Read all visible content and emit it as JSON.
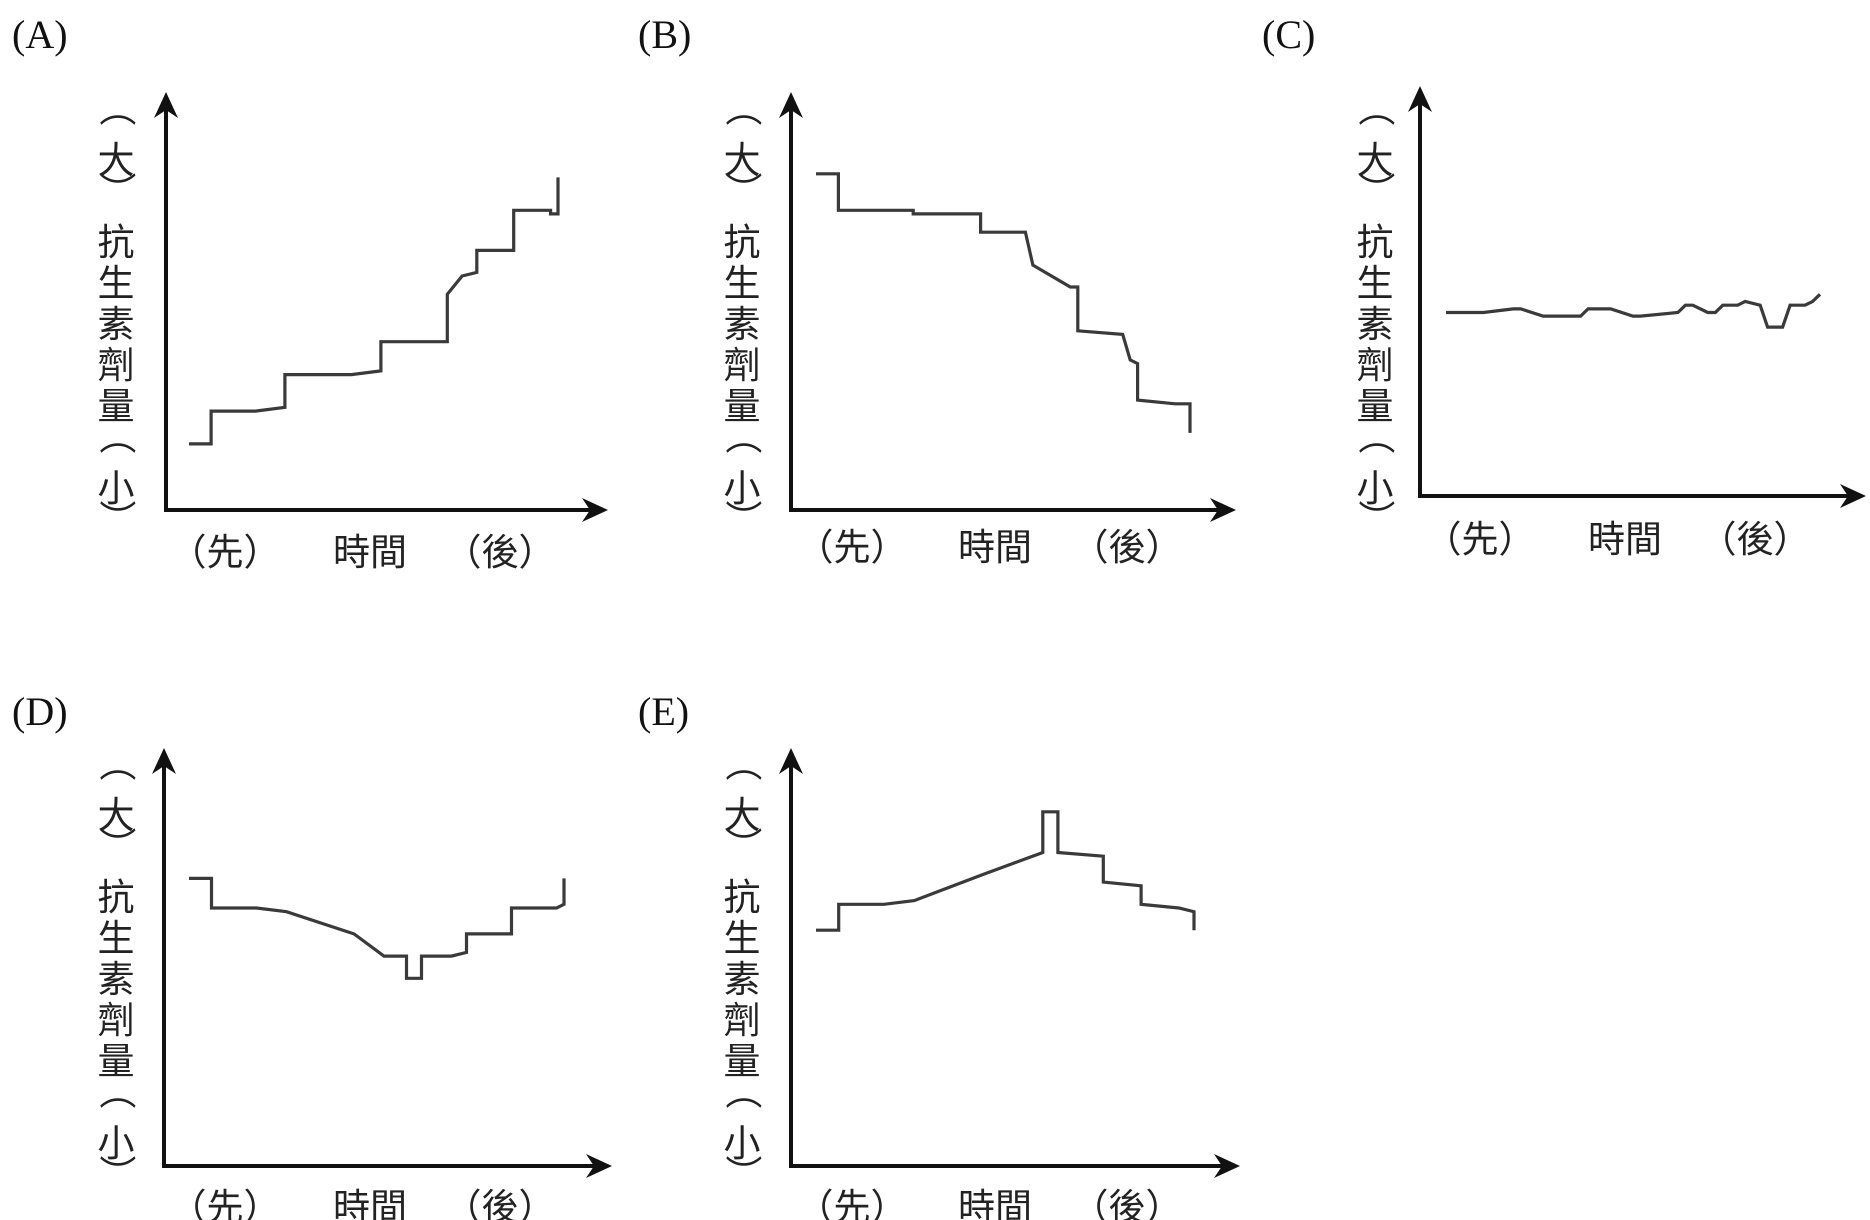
{
  "chart_data": [
    {
      "type": "line",
      "panel": "(A)",
      "ylabel": [
        "（",
        "大",
        "）",
        "抗",
        "生",
        "素",
        "劑",
        "量",
        "（",
        "小",
        "）"
      ],
      "xlabel": [
        "（先）",
        "時間",
        "（後）"
      ],
      "ylim": [
        0,
        100
      ],
      "series": [
        {
          "step_x": [
            0,
            6,
            6,
            18,
            26,
            26,
            44,
            52,
            52,
            62,
            70,
            70,
            74,
            78,
            78,
            88,
            88,
            98,
            98,
            100,
            100
          ],
          "values": [
            14,
            14,
            23,
            23,
            24,
            33,
            33,
            34,
            42,
            42,
            42,
            55,
            60,
            61,
            67,
            67,
            78,
            78,
            77,
            77,
            87
          ]
        }
      ]
    },
    {
      "type": "line",
      "panel": "(B)",
      "ylabel": [
        "（",
        "大",
        "）",
        "抗",
        "生",
        "素",
        "劑",
        "量",
        "（",
        "小",
        "）"
      ],
      "xlabel": [
        "（先）",
        "時間",
        "（後）"
      ],
      "ylim": [
        0,
        100
      ],
      "series": [
        {
          "step_x": [
            0,
            6,
            6,
            26,
            26,
            44,
            44,
            52,
            56,
            58,
            58,
            68,
            70,
            70,
            82,
            84,
            84,
            86,
            86,
            96,
            100,
            100
          ],
          "values": [
            88,
            88,
            78,
            78,
            77,
            77,
            72,
            72,
            72,
            63,
            63,
            57,
            57,
            45,
            44,
            37,
            37,
            36,
            26,
            25,
            25,
            17
          ]
        }
      ]
    },
    {
      "type": "line",
      "panel": "(C)",
      "ylabel": [
        "（",
        "大",
        "）",
        "抗",
        "生",
        "素",
        "劑",
        "量",
        "（",
        "小",
        "）"
      ],
      "xlabel": [
        "（先）",
        "時間",
        "（後）"
      ],
      "ylim": [
        0,
        100
      ],
      "series": [
        {
          "step_x": [
            0,
            6,
            10,
            18,
            20,
            26,
            36,
            38,
            44,
            50,
            52,
            62,
            64,
            66,
            70,
            72,
            74,
            78,
            80,
            84,
            86,
            90,
            92,
            96,
            98,
            100
          ],
          "values": [
            50,
            50,
            50,
            51,
            51,
            49,
            49,
            51,
            51,
            49,
            49,
            50,
            52,
            52,
            50,
            50,
            52,
            52,
            53,
            52,
            46,
            46,
            52,
            52,
            53,
            55
          ]
        }
      ]
    },
    {
      "type": "line",
      "panel": "(D)",
      "ylabel": [
        "（",
        "大",
        "）",
        "抗",
        "生",
        "素",
        "劑",
        "量",
        "（",
        "小",
        "）"
      ],
      "xlabel": [
        "（先）",
        "時間",
        "（後）"
      ],
      "ylim": [
        0,
        100
      ],
      "series": [
        {
          "step_x": [
            0,
            6,
            6,
            18,
            26,
            26,
            44,
            44,
            52,
            58,
            58,
            62,
            62,
            70,
            74,
            74,
            86,
            86,
            98,
            100,
            100
          ],
          "values": [
            68,
            68,
            60,
            60,
            59,
            59,
            53,
            53,
            47,
            47,
            41,
            41,
            47,
            47,
            48,
            53,
            53,
            60,
            60,
            61,
            68
          ]
        }
      ]
    },
    {
      "type": "line",
      "panel": "(E)",
      "ylabel": [
        "（",
        "大",
        "）",
        "抗",
        "生",
        "素",
        "劑",
        "量",
        "（",
        "小",
        "）"
      ],
      "xlabel": [
        "（先）",
        "時間",
        "（後）"
      ],
      "ylim": [
        0,
        100
      ],
      "series": [
        {
          "step_x": [
            0,
            6,
            6,
            18,
            26,
            26,
            44,
            44,
            60,
            60,
            64,
            64,
            76,
            76,
            86,
            86,
            96,
            100,
            100
          ],
          "values": [
            54,
            54,
            61,
            61,
            62,
            62,
            69,
            69,
            75,
            86,
            86,
            75,
            74,
            67,
            66,
            61,
            60,
            59,
            54
          ]
        }
      ]
    }
  ]
}
